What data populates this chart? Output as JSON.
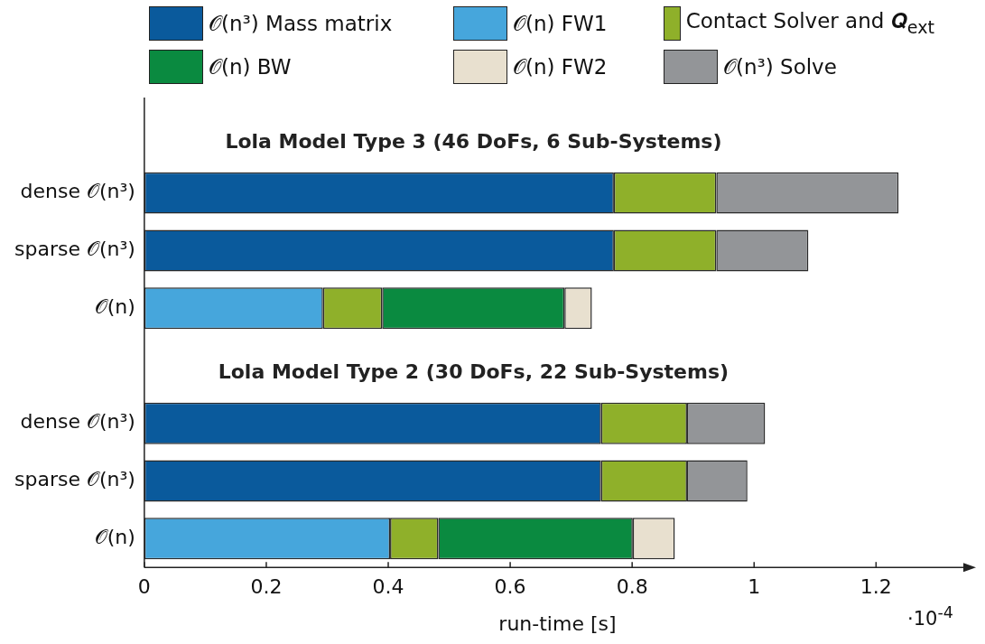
{
  "chart_data": {
    "type": "bar",
    "orientation": "horizontal",
    "stacked": true,
    "categories": [
      null,
      "dense 𝒪(n³)",
      "sparse 𝒪(n³)",
      "𝒪(n)",
      null,
      "dense 𝒪(n³)",
      "sparse 𝒪(n³)",
      "𝒪(n)"
    ],
    "series": [
      {
        "name": "𝒪(n³) Mass matrix",
        "color": "#0a5a9c",
        "values": [
          null,
          0.77,
          0.77,
          null,
          null,
          0.749,
          0.749,
          null
        ]
      },
      {
        "name": "𝒪(n) FW1",
        "color": "#46a6dc",
        "values": [
          null,
          null,
          null,
          0.293,
          null,
          null,
          null,
          0.403
        ]
      },
      {
        "name": "Contact Solver and 𝑸$_{ext}$",
        "color": "#8fb02a",
        "values": [
          null,
          0.168,
          0.168,
          0.097,
          null,
          0.141,
          0.141,
          0.079
        ]
      },
      {
        "name": "𝒪(n) BW",
        "color": "#0a8a40",
        "values": [
          null,
          null,
          null,
          0.299,
          null,
          null,
          null,
          0.319
        ]
      },
      {
        "name": "𝒪(n) FW2",
        "color": "#e8e0cf",
        "values": [
          null,
          null,
          null,
          0.045,
          null,
          null,
          null,
          0.069
        ]
      },
      {
        "name": "𝒪(n³) Solve",
        "color": "#939598",
        "values": [
          null,
          0.299,
          0.151,
          null,
          null,
          0.128,
          0.099,
          null
        ]
      }
    ],
    "xlim": [
      0,
      1.355
    ],
    "xticks": [
      0,
      0.2,
      0.4,
      0.6,
      0.8,
      1,
      1.2
    ],
    "xlabel": "run-time [s]",
    "annotations": [
      "Lola Model Type 3 (46 DoFs, 6 Sub-Systems)",
      "Lola Model Type 2 (30 DoFs, 22 Sub-Systems)",
      "·10$^{-4}$"
    ],
    "legend": "top",
    "grid": false
  }
}
